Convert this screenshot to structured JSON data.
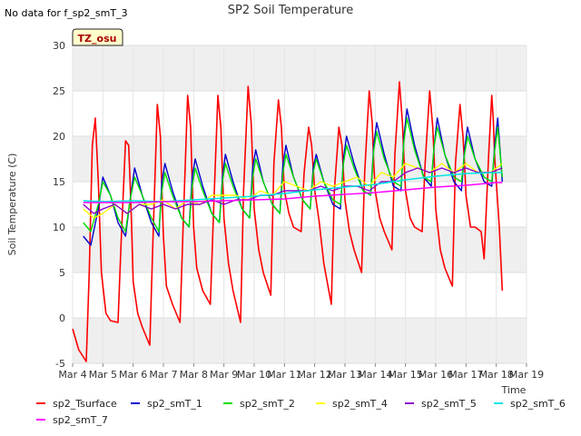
{
  "chart_data": {
    "type": "line",
    "title": "SP2 Soil Temperature",
    "no_data_note": "No data for f_sp2_smT_3",
    "tz_badge": "TZ_osu",
    "xlabel": "Time",
    "ylabel": "Soil Temperature (C)",
    "xlim": [
      4,
      19
    ],
    "ylim": [
      -5,
      30
    ],
    "y_ticks": [
      -5,
      0,
      5,
      10,
      15,
      20,
      25,
      30
    ],
    "y_tick_labels": [
      "-5",
      "0",
      "5",
      "10",
      "15",
      "20",
      "25",
      "30"
    ],
    "x_ticks": [
      4,
      5,
      6,
      7,
      8,
      9,
      10,
      11,
      12,
      13,
      14,
      15,
      16,
      17,
      18,
      19
    ],
    "x_tick_labels": [
      "Mar 4",
      "Mar 5",
      "Mar 6",
      "Mar 7",
      "Mar 8",
      "Mar 9",
      "Mar 10",
      "Mar 11",
      "Mar 12",
      "Mar 13",
      "Mar 14",
      "Mar 15",
      "Mar 16",
      "Mar 17",
      "Mar 18",
      "Mar 19"
    ],
    "series": [
      {
        "name": "sp2_Tsurface",
        "color": "#ff0000",
        "x": [
          4.0,
          4.2,
          4.45,
          4.55,
          4.65,
          4.75,
          4.85,
          4.95,
          5.1,
          5.25,
          5.5,
          5.6,
          5.75,
          5.85,
          5.9,
          5.95,
          6.0,
          6.15,
          6.3,
          6.55,
          6.65,
          6.8,
          6.9,
          6.95,
          7.0,
          7.1,
          7.3,
          7.55,
          7.65,
          7.8,
          7.9,
          7.95,
          8.0,
          8.1,
          8.3,
          8.55,
          8.65,
          8.8,
          8.9,
          8.95,
          9.0,
          9.15,
          9.3,
          9.55,
          9.65,
          9.8,
          9.9,
          9.95,
          10.0,
          10.15,
          10.3,
          10.55,
          10.65,
          10.8,
          10.9,
          10.95,
          11.0,
          11.15,
          11.3,
          11.55,
          11.65,
          11.8,
          11.9,
          11.95,
          12.0,
          12.15,
          12.3,
          12.55,
          12.65,
          12.8,
          12.9,
          12.95,
          13.0,
          13.15,
          13.3,
          13.55,
          13.65,
          13.8,
          13.9,
          13.95,
          14.0,
          14.15,
          14.3,
          14.55,
          14.65,
          14.8,
          14.9,
          14.95,
          15.0,
          15.15,
          15.3,
          15.55,
          15.65,
          15.8,
          15.9,
          15.95,
          16.0,
          16.15,
          16.3,
          16.55,
          16.65,
          16.8,
          16.9,
          16.95,
          17.0,
          17.15,
          17.3,
          17.5,
          17.6,
          17.75,
          17.85,
          17.9,
          17.95,
          18.1,
          18.2
        ],
        "values": [
          -1.2,
          -3.5,
          -4.8,
          5.0,
          19.0,
          22.0,
          15.0,
          5.0,
          0.5,
          -0.3,
          -0.5,
          8.0,
          19.5,
          19.0,
          15.0,
          10.0,
          4.0,
          0.5,
          -1.0,
          -3.0,
          8.0,
          23.5,
          20.0,
          14.0,
          9.0,
          3.5,
          1.5,
          -0.5,
          10.0,
          24.5,
          21.0,
          15.0,
          10.0,
          5.5,
          3.0,
          1.5,
          11.0,
          24.5,
          21.0,
          16.0,
          11.0,
          6.0,
          3.0,
          -0.5,
          14.0,
          25.5,
          21.5,
          17.0,
          12.0,
          7.5,
          5.0,
          2.5,
          17.0,
          24.0,
          21.0,
          17.0,
          14.0,
          11.5,
          10.0,
          9.5,
          16.0,
          21.0,
          19.0,
          16.5,
          14.0,
          10.5,
          6.0,
          1.5,
          14.0,
          21.0,
          19.0,
          16.0,
          13.0,
          9.5,
          7.5,
          5.0,
          16.0,
          25.0,
          21.5,
          17.0,
          14.0,
          11.0,
          9.5,
          7.5,
          18.0,
          26.0,
          21.5,
          17.5,
          14.0,
          11.0,
          10.0,
          9.5,
          17.0,
          25.0,
          21.0,
          17.5,
          12.0,
          7.5,
          5.5,
          3.5,
          17.0,
          23.5,
          20.0,
          17.0,
          13.5,
          10.0,
          10.0,
          9.5,
          6.5,
          18.0,
          24.5,
          22.0,
          17.5,
          10.0,
          3.0
        ]
      },
      {
        "name": "sp2_smT_1",
        "color": "#0000cc",
        "x": [
          4.35,
          4.6,
          4.85,
          5.0,
          5.25,
          5.5,
          5.75,
          5.9,
          6.05,
          6.3,
          6.6,
          6.85,
          6.95,
          7.05,
          7.3,
          7.6,
          7.85,
          7.95,
          8.05,
          8.3,
          8.6,
          8.85,
          8.95,
          9.05,
          9.3,
          9.6,
          9.85,
          9.95,
          10.05,
          10.3,
          10.6,
          10.85,
          10.95,
          11.05,
          11.3,
          11.6,
          11.85,
          11.95,
          12.05,
          12.3,
          12.6,
          12.85,
          12.95,
          13.05,
          13.3,
          13.6,
          13.85,
          13.95,
          14.05,
          14.3,
          14.6,
          14.85,
          14.95,
          15.05,
          15.3,
          15.6,
          15.85,
          15.95,
          16.05,
          16.3,
          16.6,
          16.85,
          16.95,
          17.05,
          17.3,
          17.6,
          17.85,
          17.95,
          18.05,
          18.2
        ],
        "values": [
          9.0,
          8.0,
          12.0,
          15.5,
          13.5,
          10.5,
          9.0,
          13.0,
          16.5,
          13.5,
          10.5,
          9.0,
          15.0,
          17.0,
          14.0,
          11.0,
          10.0,
          15.5,
          17.5,
          14.5,
          11.5,
          10.5,
          15.5,
          18.0,
          15.0,
          12.0,
          11.0,
          16.5,
          18.5,
          15.0,
          12.5,
          11.5,
          17.0,
          19.0,
          15.5,
          13.0,
          12.0,
          16.5,
          18.0,
          15.0,
          12.5,
          12.0,
          17.5,
          20.0,
          17.0,
          14.0,
          13.5,
          19.0,
          21.5,
          18.0,
          14.5,
          14.0,
          20.0,
          23.0,
          19.0,
          15.5,
          14.5,
          19.0,
          22.0,
          18.0,
          15.0,
          14.0,
          18.5,
          21.0,
          17.5,
          15.0,
          14.5,
          19.0,
          22.0,
          15.0
        ]
      },
      {
        "name": "sp2_smT_2",
        "color": "#00dd00",
        "x": [
          4.35,
          4.6,
          4.85,
          5.0,
          5.25,
          5.5,
          5.75,
          5.9,
          6.05,
          6.3,
          6.6,
          6.85,
          6.95,
          7.05,
          7.3,
          7.6,
          7.85,
          7.95,
          8.05,
          8.3,
          8.6,
          8.85,
          8.95,
          9.05,
          9.3,
          9.6,
          9.85,
          9.95,
          10.05,
          10.3,
          10.6,
          10.85,
          10.95,
          11.05,
          11.3,
          11.6,
          11.85,
          11.95,
          12.05,
          12.3,
          12.6,
          12.85,
          12.95,
          13.05,
          13.3,
          13.6,
          13.85,
          13.95,
          14.05,
          14.3,
          14.6,
          14.85,
          14.95,
          15.05,
          15.3,
          15.6,
          15.85,
          15.95,
          16.05,
          16.3,
          16.6,
          16.85,
          16.95,
          17.05,
          17.3,
          17.6,
          17.85,
          17.95,
          18.05,
          18.2
        ],
        "values": [
          10.5,
          9.5,
          12.5,
          15.0,
          13.5,
          11.0,
          9.5,
          13.0,
          15.5,
          13.5,
          11.0,
          9.5,
          14.0,
          16.0,
          13.5,
          11.0,
          10.0,
          14.5,
          16.5,
          14.0,
          11.5,
          10.5,
          15.0,
          17.0,
          14.5,
          12.0,
          11.0,
          15.5,
          17.5,
          15.0,
          12.5,
          11.5,
          16.0,
          18.0,
          15.5,
          13.0,
          12.0,
          16.0,
          17.5,
          15.0,
          13.0,
          12.5,
          17.0,
          19.0,
          16.5,
          14.0,
          13.5,
          18.5,
          20.5,
          17.5,
          15.0,
          14.5,
          19.5,
          22.0,
          18.5,
          15.5,
          15.0,
          19.0,
          21.0,
          18.0,
          15.5,
          15.0,
          18.0,
          20.0,
          17.5,
          15.5,
          15.0,
          18.5,
          21.0,
          15.5
        ]
      },
      {
        "name": "sp2_smT_4",
        "color": "#ffff00",
        "x": [
          4.35,
          4.7,
          5.0,
          5.4,
          5.8,
          6.2,
          6.6,
          7.0,
          7.4,
          7.8,
          8.2,
          8.6,
          9.0,
          9.4,
          9.8,
          10.2,
          10.6,
          11.0,
          11.4,
          11.8,
          12.2,
          12.6,
          13.0,
          13.4,
          13.8,
          14.2,
          14.6,
          15.0,
          15.4,
          15.8,
          16.2,
          16.6,
          17.0,
          17.4,
          17.8,
          18.2
        ],
        "values": [
          12.0,
          11.0,
          11.5,
          12.5,
          11.5,
          12.5,
          12.5,
          13.0,
          12.0,
          13.0,
          12.5,
          13.5,
          13.5,
          13.5,
          13.0,
          14.0,
          13.5,
          15.0,
          14.5,
          14.0,
          15.0,
          14.5,
          15.0,
          15.5,
          14.5,
          16.0,
          15.5,
          17.0,
          16.5,
          16.0,
          17.0,
          16.0,
          17.0,
          16.0,
          16.0,
          17.0
        ]
      },
      {
        "name": "sp2_smT_5",
        "color": "#8800cc",
        "x": [
          4.35,
          4.7,
          5.0,
          5.4,
          5.8,
          6.2,
          6.6,
          7.0,
          7.4,
          7.8,
          8.2,
          8.6,
          9.0,
          9.4,
          9.8,
          10.2,
          10.6,
          11.0,
          11.4,
          11.8,
          12.2,
          12.6,
          13.0,
          13.4,
          13.8,
          14.2,
          14.6,
          15.0,
          15.4,
          15.8,
          16.2,
          16.6,
          17.0,
          17.4,
          17.8,
          18.2
        ],
        "values": [
          12.5,
          11.5,
          12.0,
          12.5,
          11.5,
          12.5,
          12.0,
          12.5,
          12.0,
          12.5,
          12.5,
          13.0,
          12.5,
          13.0,
          13.0,
          13.5,
          13.5,
          14.0,
          14.0,
          14.0,
          14.5,
          14.0,
          14.5,
          14.5,
          14.0,
          15.0,
          15.0,
          16.0,
          16.5,
          16.0,
          16.5,
          16.0,
          16.5,
          16.0,
          16.0,
          16.5
        ]
      },
      {
        "name": "sp2_smT_6",
        "color": "#00e5e5",
        "x": [
          4.35,
          5.0,
          6.0,
          7.0,
          8.0,
          9.0,
          10.0,
          11.0,
          12.0,
          13.0,
          14.0,
          15.0,
          16.0,
          17.0,
          18.0,
          18.2
        ],
        "values": [
          12.9,
          12.8,
          12.9,
          12.8,
          13.0,
          13.2,
          13.4,
          13.7,
          14.1,
          14.4,
          14.7,
          15.2,
          15.6,
          15.9,
          16.0,
          16.0
        ]
      },
      {
        "name": "sp2_smT_7",
        "color": "#ff00ff",
        "x": [
          4.35,
          5.0,
          6.0,
          7.0,
          8.0,
          9.0,
          10.0,
          11.0,
          12.0,
          13.0,
          14.0,
          15.0,
          16.0,
          17.0,
          18.0,
          18.2
        ],
        "values": [
          12.7,
          12.7,
          12.7,
          12.8,
          12.8,
          12.9,
          13.0,
          13.1,
          13.4,
          13.6,
          13.8,
          14.1,
          14.4,
          14.6,
          14.9,
          14.9
        ]
      }
    ]
  }
}
